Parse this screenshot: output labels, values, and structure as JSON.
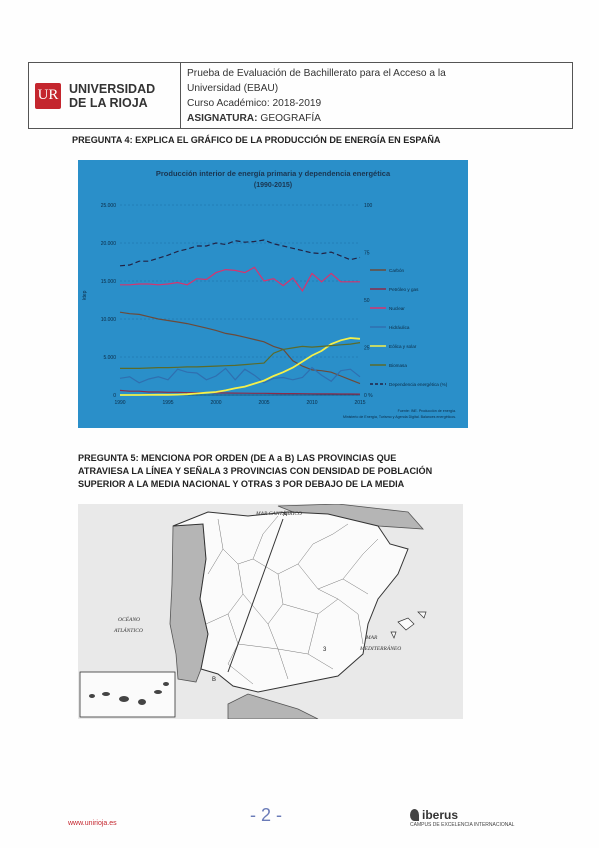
{
  "header": {
    "logo_glyph": "UR",
    "university": "UNIVERSIDAD\nDE LA RIOJA",
    "line1": "Prueba de Evaluación de Bachillerato para el Acceso a la",
    "line2": "Universidad (EBAU)",
    "line3": "Curso Académico: 2018-2019",
    "line4_label": "ASIGNATURA:",
    "line4_value": "GEOGRAFÍA"
  },
  "q4": "PREGUNTA 4: EXPLICA EL GRÁFICO DE LA PRODUCCIÓN DE ENERGÍA EN ESPAÑA",
  "q5": [
    "PREGUNTA 5: MENCIONA POR ORDEN (DE A a B) LAS PROVINCIAS QUE",
    "ATRAVIESA LA LÍNEA Y SEÑALA 3 PROVINCIAS CON DENSIDAD DE POBLACIÓN",
    "SUPERIOR A LA MEDIA NACIONAL Y OTRAS 3 POR DEBAJO DE LA MEDIA"
  ],
  "chart_data": {
    "type": "line",
    "title": "Producción interior de energía primaria y dependencia energética",
    "subtitle": "(1990-2015)",
    "ylabel": "ktep",
    "ylim": [
      0,
      25000
    ],
    "yticks": [
      "0",
      "5.000",
      "10.000",
      "15.000",
      "20.000",
      "25.000"
    ],
    "y2ticks": [
      "0 %",
      "25",
      "50",
      "75",
      "100"
    ],
    "x": [
      1990,
      1991,
      1992,
      1993,
      1994,
      1995,
      1996,
      1997,
      1998,
      1999,
      2000,
      2001,
      2002,
      2003,
      2004,
      2005,
      2006,
      2007,
      2008,
      2009,
      2010,
      2011,
      2012,
      2013,
      2014,
      2015
    ],
    "xticks": [
      "1990",
      "1995",
      "2000",
      "2005",
      "2010",
      "2015"
    ],
    "series": [
      {
        "name": "Carbón",
        "color": "#6b4a3a",
        "dash": "",
        "values": [
          10900,
          10700,
          10600,
          10300,
          10000,
          9800,
          9600,
          9400,
          9100,
          8800,
          8500,
          8100,
          7900,
          7600,
          7300,
          7000,
          6400,
          6000,
          4500,
          3800,
          3300,
          3200,
          3000,
          2500,
          2000,
          1500
        ]
      },
      {
        "name": "Petróleo y gas",
        "color": "#8a2b4a",
        "dash": "",
        "values": [
          600,
          500,
          500,
          400,
          400,
          350,
          350,
          300,
          300,
          300,
          280,
          260,
          250,
          240,
          230,
          220,
          200,
          190,
          180,
          170,
          160,
          150,
          140,
          130,
          130,
          120
        ]
      },
      {
        "name": "Nuclear",
        "color": "#d8336e",
        "dash": "",
        "values": [
          14500,
          14500,
          14600,
          14600,
          14500,
          14600,
          14800,
          14500,
          15300,
          15200,
          16100,
          16500,
          16400,
          16100,
          16800,
          15000,
          15300,
          14400,
          15400,
          13700,
          16000,
          14900,
          16000,
          14900,
          14900,
          14900
        ]
      },
      {
        "name": "Hidráulica",
        "color": "#2f6fb0",
        "dash": "",
        "values": [
          2200,
          2400,
          1600,
          2100,
          2400,
          2000,
          3400,
          3000,
          2900,
          2000,
          2500,
          3500,
          2000,
          3400,
          2600,
          1600,
          2200,
          2300,
          2000,
          2300,
          3600,
          2600,
          1800,
          3200,
          3400,
          2400
        ]
      },
      {
        "name": "Eólica y solar",
        "color": "#f4f04a",
        "dash": "",
        "values": [
          0,
          0,
          0,
          10,
          20,
          30,
          50,
          100,
          200,
          300,
          400,
          600,
          900,
          1100,
          1500,
          1900,
          2500,
          3000,
          3600,
          4400,
          5200,
          5800,
          6700,
          7200,
          7500,
          7400
        ]
      },
      {
        "name": "Biomasa",
        "color": "#5a6b2a",
        "dash": "",
        "values": [
          3500,
          3500,
          3500,
          3550,
          3600,
          3600,
          3650,
          3700,
          3700,
          3750,
          3800,
          3850,
          3900,
          4000,
          4100,
          4200,
          5500,
          6000,
          6200,
          6400,
          6300,
          6400,
          6500,
          6600,
          6700,
          6900
        ]
      },
      {
        "name": "Dependencia energética (%)",
        "color": "#222244",
        "dash": "5,3",
        "values": [
          17000,
          17100,
          17600,
          17600,
          18000,
          18400,
          18900,
          19200,
          19600,
          19600,
          20000,
          19800,
          20300,
          20100,
          20200,
          20400,
          19900,
          19600,
          19300,
          19000,
          18700,
          18600,
          18800,
          18300,
          17800,
          18100
        ]
      }
    ],
    "source": [
      "Fuente: INE. Producción de energía.",
      "Ministerio de Energía, Turismo y Agenda Digital. Balances energéticos."
    ]
  },
  "map": {
    "sea_labels": [
      "MAR CANTÁBRICO",
      "OCÉANO",
      "ATLÁNTICO",
      "MAR",
      "MEDITERRÁNEO"
    ],
    "point_a": "A",
    "point_b": "B",
    "number_3": "3"
  },
  "footer": {
    "url": "www.unirioja.es",
    "page": "- 2 -",
    "brand": "iberus",
    "brand_sub": "CAMPUS DE EXCELENCIA INTERNACIONAL"
  }
}
